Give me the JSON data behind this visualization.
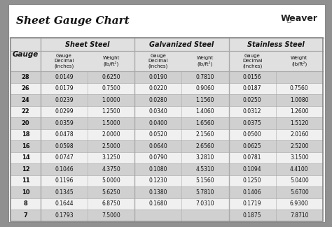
{
  "title": "Sheet Gauge Chart",
  "bg_outer": "#909090",
  "bg_white": "#ffffff",
  "bg_header_section": "#e0e0e0",
  "bg_row_shaded": "#d0d0d0",
  "bg_row_light": "#f0f0f0",
  "bg_row_white": "#ffffff",
  "border_color": "#888888",
  "line_color": "#aaaaaa",
  "text_dark": "#111111",
  "gauges": [
    28,
    26,
    24,
    22,
    20,
    18,
    16,
    14,
    12,
    11,
    10,
    8,
    7
  ],
  "sheet_steel_decimal": [
    "0.0149",
    "0.0179",
    "0.0239",
    "0.0299",
    "0.0359",
    "0.0478",
    "0.0598",
    "0.0747",
    "0.1046",
    "0.1196",
    "0.1345",
    "0.1644",
    "0.1793"
  ],
  "sheet_steel_weight": [
    "0.6250",
    "0.7500",
    "1.0000",
    "1.2500",
    "1.5000",
    "2.0000",
    "2.5000",
    "3.1250",
    "4.3750",
    "5.0000",
    "5.6250",
    "6.8750",
    "7.5000"
  ],
  "galv_decimal": [
    "0.0190",
    "0.0220",
    "0.0280",
    "0.0340",
    "0.0400",
    "0.0520",
    "0.0640",
    "0.0790",
    "0.1080",
    "0.1230",
    "0.1380",
    "0.1680",
    ""
  ],
  "galv_weight": [
    "0.7810",
    "0.9060",
    "1.1560",
    "1.4060",
    "1.6560",
    "2.1560",
    "2.6560",
    "3.2810",
    "4.5310",
    "5.1560",
    "5.7810",
    "7.0310",
    ""
  ],
  "ss_decimal": [
    "0.0156",
    "0.0187",
    "0.0250",
    "0.0312",
    "0.0375",
    "0.0500",
    "0.0625",
    "0.0781",
    "0.1094",
    "0.1250",
    "0.1406",
    "0.1719",
    "0.1875"
  ],
  "ss_weight": [
    "",
    "0.7560",
    "1.0080",
    "1.2600",
    "1.5120",
    "2.0160",
    "2.5200",
    "3.1500",
    "4.4100",
    "5.0400",
    "5.6700",
    "6.9300",
    "7.8710"
  ],
  "shaded_rows": [
    0,
    2,
    4,
    6,
    8,
    10,
    12
  ],
  "col_group_headers": [
    "Sheet Steel",
    "Galvanized Steel",
    "Stainless Steel"
  ],
  "sub_col_label": "Gauge\nDecimal\n(inches)",
  "sub_wt_label": "Weight\n(lb/ft²)"
}
